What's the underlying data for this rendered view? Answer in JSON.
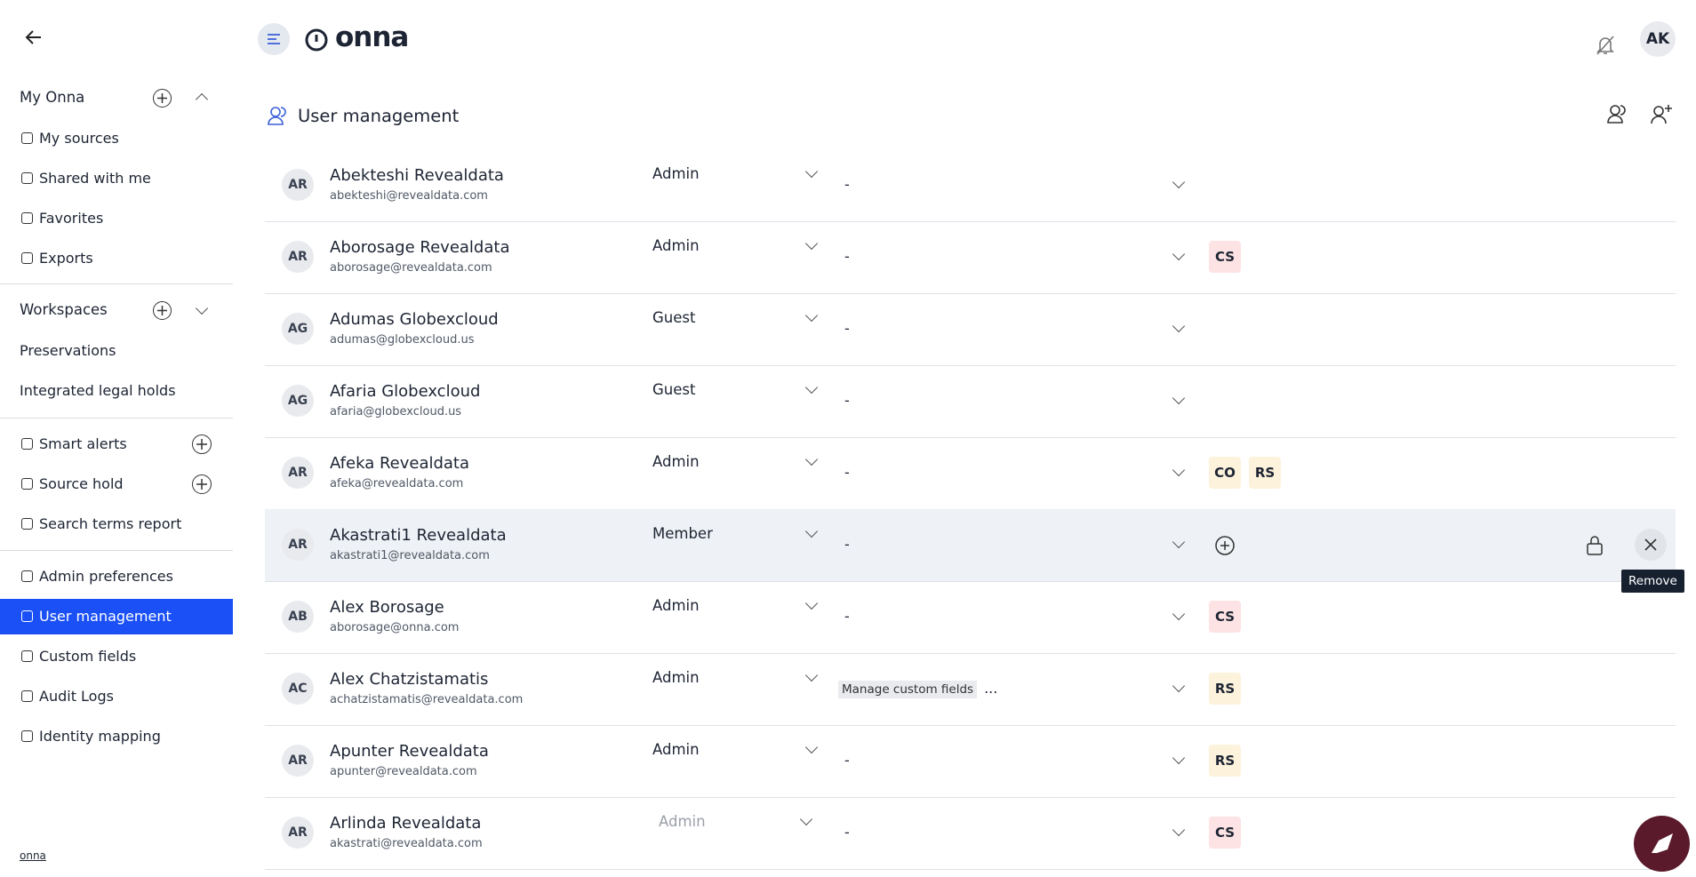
{
  "header": {
    "logo": "onna",
    "avatar": "AK"
  },
  "sidebar": {
    "sections": [
      {
        "title": "My Onna",
        "items": [
          "My sources",
          "Shared with me",
          "Favorites",
          "Exports"
        ]
      },
      {
        "title": "Workspaces",
        "items": [
          "Preservations",
          "Integrated legal holds"
        ]
      },
      {
        "items": [
          "Smart alerts",
          "Source hold",
          "Search terms report"
        ]
      },
      {
        "items": [
          "Admin preferences",
          "User management",
          "Custom fields",
          "Audit Logs",
          "Identity mapping"
        ]
      }
    ],
    "active": "User management",
    "footer_logo": "onna"
  },
  "page": {
    "title": "User management"
  },
  "table": {
    "rows": [
      {
        "initials": "AR",
        "name": "Abekteshi Revealdata",
        "email": "abekteshi@revealdata.com",
        "role": "Admin",
        "permissions": "-",
        "badges": []
      },
      {
        "initials": "AR",
        "name": "Aborosage Revealdata",
        "email": "aborosage@revealdata.com",
        "role": "Admin",
        "permissions": "-",
        "badges": [
          "CS"
        ]
      },
      {
        "initials": "AG",
        "name": "Adumas Globexcloud",
        "email": "adumas@globexcloud.us",
        "role": "Guest",
        "permissions": "-",
        "badges": []
      },
      {
        "initials": "AG",
        "name": "Afaria Globexcloud",
        "email": "afaria@globexcloud.us",
        "role": "Guest",
        "permissions": "-",
        "badges": []
      },
      {
        "initials": "AR",
        "name": "Afeka Revealdata",
        "email": "afeka@revealdata.com",
        "role": "Admin",
        "permissions": "-",
        "badges": [
          "CO",
          "RS"
        ]
      },
      {
        "initials": "AR",
        "name": "Akastrati1 Revealdata",
        "email": "akastrati1@revealdata.com",
        "role": "Member",
        "permissions": "-",
        "badges": [],
        "hovered": true
      },
      {
        "initials": "AB",
        "name": "Alex Borosage",
        "email": "aborosage@onna.com",
        "role": "Admin",
        "permissions": "-",
        "badges": [
          "CS"
        ]
      },
      {
        "initials": "AC",
        "name": "Alex Chatzistamatis",
        "email": "achatzistamatis@revealdata.com",
        "role": "Admin",
        "permission_chips": [
          "Manage custom fields"
        ],
        "more": "...",
        "badges": [
          "RS"
        ]
      },
      {
        "initials": "AR",
        "name": "Apunter Revealdata",
        "email": "apunter@revealdata.com",
        "role": "Admin",
        "permissions": "-",
        "badges": [
          "RS"
        ]
      },
      {
        "initials": "AR",
        "name": "Arlinda Revealdata",
        "email": "akastrati@revealdata.com",
        "role": "Admin",
        "role_disabled": true,
        "permissions": "-",
        "badges": [
          "CS"
        ]
      }
    ],
    "tooltip": "Remove"
  }
}
